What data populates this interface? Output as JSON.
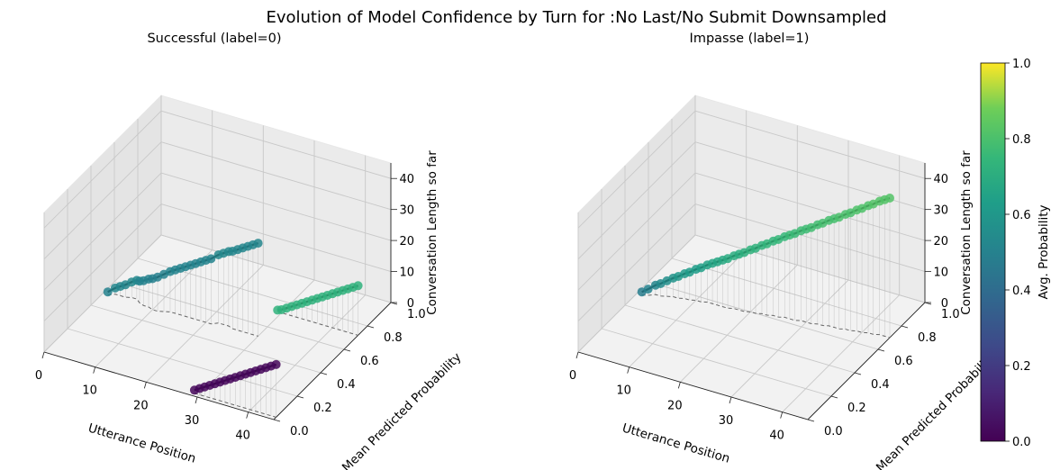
{
  "title": "Evolution of Model Confidence by Turn for :No Last/No Submit Downsampled",
  "chart_data": [
    {
      "type": "line3d",
      "subplot_title": "Successful (label=0)",
      "xlabel": "Utterance Position",
      "ylabel": "Mean Predicted Probability",
      "zlabel": "Conversation Length so far",
      "xlim": [
        0,
        45
      ],
      "ylim": [
        0,
        1
      ],
      "zlim": [
        0,
        45
      ],
      "xticks": [
        "0",
        "10",
        "20",
        "30",
        "40"
      ],
      "yticks": [
        "0.0",
        "0.2",
        "0.4",
        "0.6",
        "0.8",
        "1.0"
      ],
      "zticks": [
        "0",
        "10",
        "20",
        "30",
        "40"
      ],
      "series": [
        {
          "x": [
            1,
            2,
            3,
            4,
            5,
            6,
            7,
            8,
            9,
            10,
            11,
            12,
            13,
            14,
            15,
            16,
            17,
            18,
            19,
            20,
            21,
            22,
            23,
            24,
            25,
            26,
            27,
            28,
            29,
            30
          ],
          "y": [
            0.5,
            0.52,
            0.52,
            0.52,
            0.53,
            0.53,
            0.51,
            0.5,
            0.5,
            0.49,
            0.49,
            0.5,
            0.51,
            0.51,
            0.51,
            0.51,
            0.51,
            0.51,
            0.51,
            0.51,
            0.51,
            0.53,
            0.53,
            0.53,
            0.52,
            0.52,
            0.52,
            0.52,
            0.52,
            0.52
          ],
          "z": [
            1,
            2,
            3,
            4,
            5,
            6,
            7,
            8,
            9,
            10,
            11,
            12,
            13,
            14,
            15,
            16,
            17,
            18,
            19,
            20,
            21,
            22,
            23,
            24,
            25,
            26,
            27,
            28,
            29,
            30
          ]
        },
        {
          "x": [
            29,
            30,
            31,
            32,
            33,
            34,
            35,
            36,
            37,
            38,
            39,
            40,
            41,
            42,
            43,
            44,
            45
          ],
          "y": [
            0.73,
            0.72,
            0.72,
            0.72,
            0.72,
            0.72,
            0.72,
            0.72,
            0.72,
            0.72,
            0.72,
            0.72,
            0.72,
            0.72,
            0.72,
            0.72,
            0.72
          ],
          "z": [
            0,
            1,
            2,
            3,
            4,
            5,
            6,
            7,
            8,
            9,
            10,
            11,
            12,
            13,
            14,
            15,
            16
          ]
        },
        {
          "x": [
            29,
            30,
            31,
            32,
            33,
            34,
            35,
            36,
            37,
            38,
            39,
            40,
            41,
            42,
            43,
            44,
            45
          ],
          "y": [
            0.02,
            0.02,
            0.02,
            0.02,
            0.02,
            0.02,
            0.02,
            0.02,
            0.02,
            0.02,
            0.02,
            0.02,
            0.02,
            0.02,
            0.02,
            0.02,
            0.02
          ],
          "z": [
            1,
            2,
            3,
            4,
            5,
            6,
            7,
            8,
            9,
            10,
            11,
            12,
            13,
            14,
            15,
            16,
            17
          ]
        }
      ]
    },
    {
      "type": "line3d",
      "subplot_title": "Impasse (label=1)",
      "xlabel": "Utterance Position",
      "ylabel": "Mean Predicted Probability",
      "zlabel": "Conversation Length so far",
      "xlim": [
        0,
        45
      ],
      "ylim": [
        0,
        1
      ],
      "zlim": [
        0,
        45
      ],
      "xticks": [
        "0",
        "10",
        "20",
        "30",
        "40"
      ],
      "yticks": [
        "0.0",
        "0.2",
        "0.4",
        "0.6",
        "0.8",
        "1.0"
      ],
      "zticks": [
        "0",
        "10",
        "20",
        "30",
        "40"
      ],
      "series": [
        {
          "x": [
            1,
            2,
            3,
            4,
            5,
            6,
            7,
            8,
            9,
            10,
            11,
            12,
            13,
            14,
            15,
            16,
            17,
            18,
            19,
            20,
            21,
            22,
            23,
            24,
            25,
            26,
            27,
            28,
            29,
            30,
            31,
            32,
            33,
            34,
            35,
            36,
            37,
            38,
            39,
            40,
            41,
            42,
            43,
            44,
            45
          ],
          "y": [
            0.5,
            0.51,
            0.53,
            0.53,
            0.54,
            0.55,
            0.55,
            0.56,
            0.56,
            0.57,
            0.57,
            0.58,
            0.58,
            0.58,
            0.58,
            0.58,
            0.59,
            0.59,
            0.59,
            0.6,
            0.6,
            0.61,
            0.61,
            0.62,
            0.62,
            0.63,
            0.63,
            0.63,
            0.64,
            0.64,
            0.64,
            0.65,
            0.65,
            0.66,
            0.66,
            0.66,
            0.67,
            0.67,
            0.68,
            0.68,
            0.69,
            0.69,
            0.7,
            0.7,
            0.7
          ],
          "z": [
            1,
            2,
            3,
            4,
            5,
            6,
            7,
            8,
            9,
            10,
            11,
            12,
            13,
            14,
            15,
            16,
            17,
            18,
            19,
            20,
            21,
            22,
            23,
            24,
            25,
            26,
            27,
            28,
            29,
            30,
            31,
            32,
            33,
            34,
            35,
            36,
            37,
            38,
            39,
            40,
            41,
            42,
            43,
            44,
            45
          ],
          "c": [
            0.48,
            0.5,
            0.52,
            0.54,
            0.56,
            0.58,
            0.6,
            0.61,
            0.62,
            0.63,
            0.64,
            0.65,
            0.66,
            0.67,
            0.68,
            0.69,
            0.7,
            0.7,
            0.71,
            0.72,
            0.72,
            0.73,
            0.74,
            0.74,
            0.75,
            0.75,
            0.76,
            0.76,
            0.77,
            0.77,
            0.78,
            0.78,
            0.79,
            0.79,
            0.79,
            0.8,
            0.8,
            0.8,
            0.81,
            0.81,
            0.81,
            0.82,
            0.82,
            0.82,
            0.82
          ]
        }
      ]
    }
  ],
  "colorbar": {
    "label": "Avg. Probability",
    "ticks": [
      "0.0",
      "0.2",
      "0.4",
      "0.6",
      "0.8",
      "1.0"
    ],
    "colormap": [
      "#440154",
      "#3b528b",
      "#21918c",
      "#5ec962",
      "#fde725"
    ]
  }
}
